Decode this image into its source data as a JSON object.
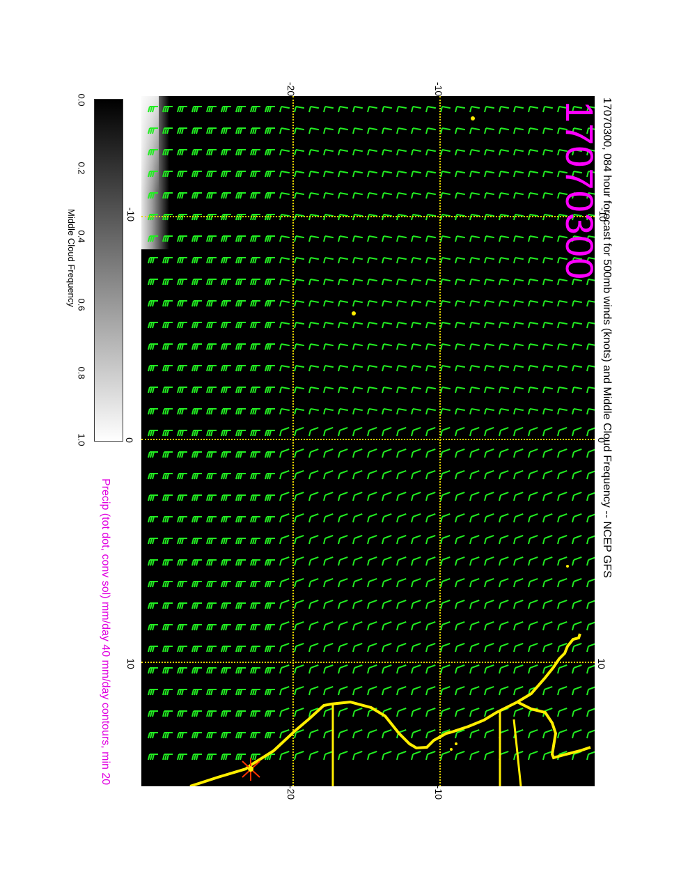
{
  "title": "17070300, 084 hour forecast for 500mb winds (knots) and Middle Cloud Frequency -- NCEP GFS",
  "stamp": "17070300",
  "precip_note": "Precip (tot dot, conv sol) mm/day 40 mm/day contours, min 20",
  "colorbar": {
    "title": "Middle Cloud Frequency",
    "ticks": [
      "0.0",
      "0.2",
      "0.4",
      "0.6",
      "0.8",
      "1.0"
    ]
  },
  "axes": {
    "top_ticks": [
      "-20",
      "-10"
    ],
    "bottom_ticks": [
      "-20",
      "-10"
    ],
    "left_ticks": [
      "-10",
      "0",
      "10"
    ],
    "right_ticks": [
      "-10",
      "0",
      "10"
    ]
  },
  "colors": {
    "barbs": "#22ee22",
    "coast": "#ffee00",
    "grid": "#e6d400",
    "stamp": "#ff00ff",
    "precip": "#e000e0"
  }
}
